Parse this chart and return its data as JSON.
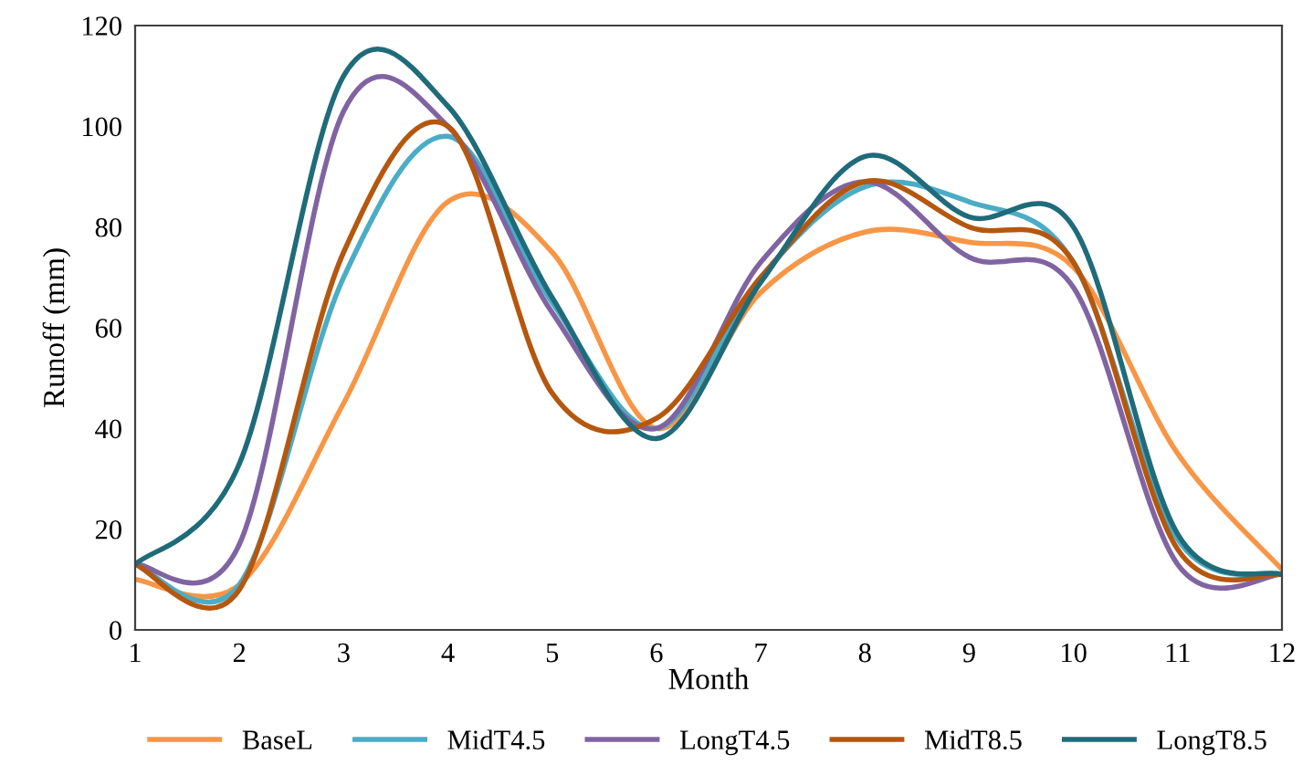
{
  "chart_data": {
    "type": "line",
    "xlabel": "Month",
    "ylabel": "Runoff (mm)",
    "x": [
      1,
      2,
      3,
      4,
      5,
      6,
      7,
      8,
      9,
      10,
      11,
      12
    ],
    "xlim": [
      1,
      12
    ],
    "xticks": [
      1,
      2,
      3,
      4,
      5,
      6,
      7,
      8,
      9,
      10,
      11,
      12
    ],
    "ylim": [
      0,
      120
    ],
    "yticks": [
      0,
      20,
      40,
      60,
      80,
      100,
      120
    ],
    "grid": false,
    "legend": "bottom",
    "series": [
      {
        "name": "BaseL",
        "color": "#f79646",
        "values": [
          10,
          9,
          45,
          85,
          75,
          40,
          67,
          79,
          77,
          72,
          35,
          12
        ]
      },
      {
        "name": "MidT4.5",
        "color": "#4bacc6",
        "values": [
          13,
          9,
          70,
          98,
          65,
          40,
          70,
          88,
          85,
          73,
          18,
          11
        ]
      },
      {
        "name": "LongT4.5",
        "color": "#8064a2",
        "values": [
          13,
          17,
          103,
          100,
          63,
          40,
          73,
          89,
          74,
          68,
          13,
          11
        ]
      },
      {
        "name": "MidT8.5",
        "color": "#b5570f",
        "values": [
          13,
          8,
          75,
          100,
          47,
          42,
          70,
          89,
          80,
          73,
          16,
          11
        ]
      },
      {
        "name": "LongT8.5",
        "color": "#1f6b7a",
        "values": [
          13,
          33,
          110,
          104,
          66,
          38,
          69,
          94,
          82,
          80,
          19,
          11
        ]
      }
    ]
  }
}
